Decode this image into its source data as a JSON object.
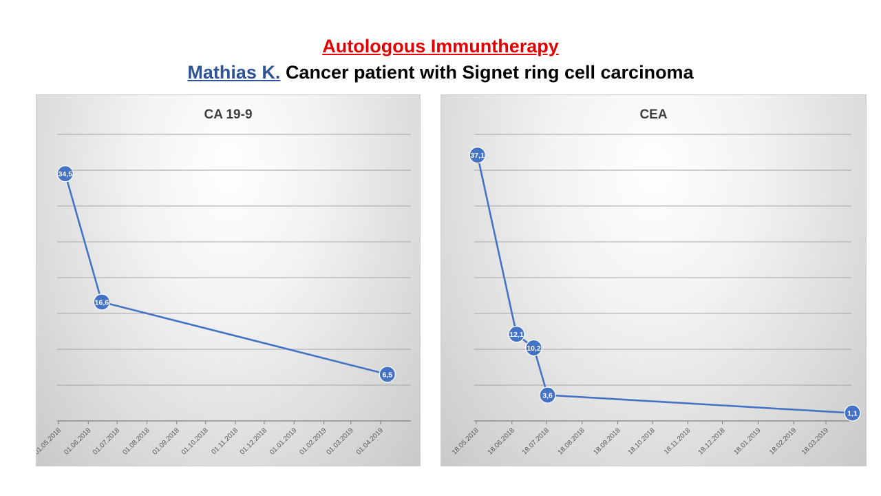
{
  "header": {
    "title": "Autologous Immuntherapy",
    "patient_name": "Mathias K.",
    "subtitle_rest": "Cancer patient with Signet ring cell carcinoma"
  },
  "colors": {
    "title_red": "#e30000",
    "name_blue": "#2f5496",
    "series_blue": "#4472c4"
  },
  "chart_data": [
    {
      "type": "line",
      "title": "CA 19-9",
      "xlabel": "",
      "ylabel": "",
      "x_ticks": [
        "01.05.2018",
        "01.06.2018",
        "01.07.2018",
        "01.08.2018",
        "01.09.2018",
        "01.10.2018",
        "01.11.2018",
        "01.12.2018",
        "01.01.2019",
        "01.02.2019",
        "01.03.2019",
        "01.04.2019"
      ],
      "series": [
        {
          "x": [
            "2018-05-08",
            "2018-06-15",
            "2019-04-08"
          ],
          "y": [
            34.5,
            16.6,
            6.5
          ],
          "labels": [
            "34,5",
            "16,6",
            "6,5"
          ]
        }
      ],
      "ylim": [
        0,
        40
      ],
      "grid": true,
      "legend": "none"
    },
    {
      "type": "line",
      "title": "CEA",
      "xlabel": "",
      "ylabel": "",
      "x_ticks": [
        "18.05.2018",
        "18.06.2018",
        "18.07.2018",
        "18.08.2018",
        "18.09.2018",
        "18.10.2018",
        "18.11.2018",
        "18.12.2018",
        "18.01.2019",
        "18.02.2019",
        "18.03.2019"
      ],
      "series": [
        {
          "x": [
            "2018-05-19",
            "2018-06-22",
            "2018-07-07",
            "2018-07-19",
            "2019-04-10"
          ],
          "y": [
            37.1,
            12.1,
            10.2,
            3.6,
            1.1
          ],
          "labels": [
            "37,1",
            "12,1",
            "10,2",
            "3,6",
            "1,1"
          ]
        }
      ],
      "ylim": [
        0,
        40
      ],
      "grid": true,
      "legend": "none"
    }
  ]
}
